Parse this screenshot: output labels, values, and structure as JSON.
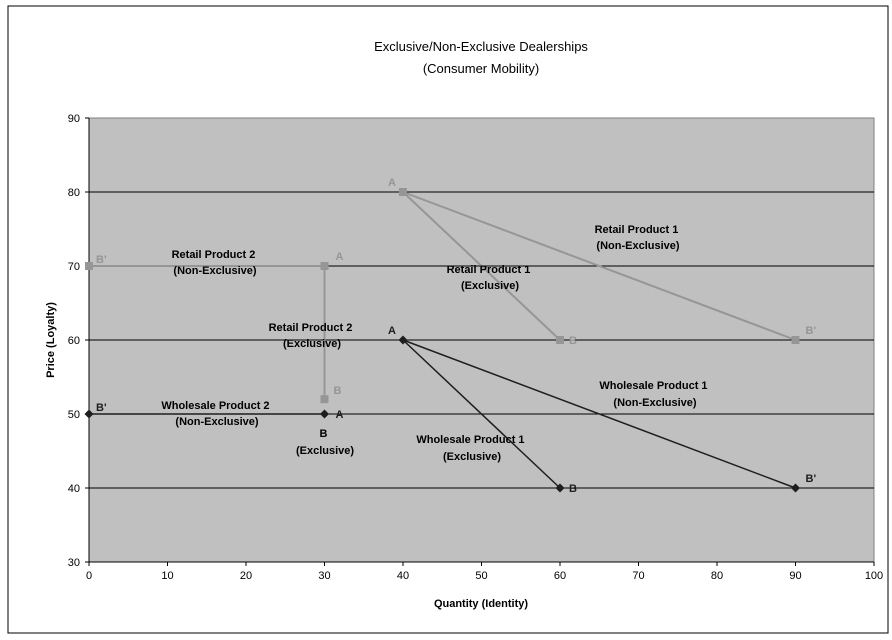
{
  "chart_data": {
    "type": "line",
    "title_lines": [
      "Exclusive/Non-Exclusive Dealerships",
      "(Consumer Mobility)"
    ],
    "xlabel": "Quantity (Identity)",
    "ylabel": "Price (Loyalty)",
    "xlim": [
      0,
      100
    ],
    "ylim": [
      30,
      90
    ],
    "xticks": [
      0,
      10,
      20,
      30,
      40,
      50,
      60,
      70,
      80,
      90,
      100
    ],
    "yticks": [
      30,
      40,
      50,
      60,
      70,
      80,
      90
    ],
    "grid": "horizontal",
    "colors": {
      "retail": "#969696",
      "wholesale": "#1e1e1e",
      "plot_bg": "#c0c0c0"
    },
    "series": [
      {
        "id": "retail-1-exclusive",
        "group": "retail",
        "marker": "square",
        "points": [
          {
            "x": 40,
            "y": 80,
            "label": "A"
          },
          {
            "x": 60,
            "y": 60,
            "label": "B"
          }
        ]
      },
      {
        "id": "retail-1-non-exclusive",
        "group": "retail",
        "marker": "square",
        "points": [
          {
            "x": 40,
            "y": 80,
            "label": ""
          },
          {
            "x": 90,
            "y": 60,
            "label": "B'"
          }
        ]
      },
      {
        "id": "retail-2-exclusive",
        "group": "retail",
        "marker": "square",
        "points": [
          {
            "x": 30,
            "y": 70,
            "label": "A"
          },
          {
            "x": 30,
            "y": 52,
            "label": "B"
          }
        ]
      },
      {
        "id": "retail-2-non-exclusive",
        "group": "retail",
        "marker": "square",
        "points": [
          {
            "x": 0,
            "y": 70,
            "label": "B'"
          },
          {
            "x": 30,
            "y": 70,
            "label": ""
          }
        ]
      },
      {
        "id": "wholesale-1-exclusive",
        "group": "wholesale",
        "marker": "diamond",
        "points": [
          {
            "x": 40,
            "y": 60,
            "label": "A"
          },
          {
            "x": 60,
            "y": 40,
            "label": "B"
          }
        ]
      },
      {
        "id": "wholesale-1-non-exclusive",
        "group": "wholesale",
        "marker": "diamond",
        "points": [
          {
            "x": 40,
            "y": 60,
            "label": ""
          },
          {
            "x": 90,
            "y": 40,
            "label": "B'"
          }
        ]
      },
      {
        "id": "wholesale-2-exclusive",
        "group": "wholesale",
        "marker": "diamond",
        "points": [
          {
            "x": 30,
            "y": 50,
            "label": "A"
          }
        ]
      },
      {
        "id": "wholesale-2-non-exclusive",
        "group": "wholesale",
        "marker": "diamond",
        "points": [
          {
            "x": 0,
            "y": 50,
            "label": "B'"
          },
          {
            "x": 30,
            "y": 50,
            "label": ""
          }
        ]
      }
    ],
    "annotations": [
      {
        "id": "retail-product-2-non-exclusive",
        "lines": [
          "Retail  Product 2",
          "(Non-Exclusive)"
        ]
      },
      {
        "id": "retail-product-1-exclusive",
        "lines": [
          "Retail Product 1",
          "(Exclusive)"
        ]
      },
      {
        "id": "retail-product-1-non-exclusive",
        "lines": [
          "Retail Product 1",
          "(Non-Exclusive)"
        ]
      },
      {
        "id": "retail-product-2-exclusive",
        "lines": [
          "Retail Product 2",
          "(Exclusive)"
        ]
      },
      {
        "id": "wholesale-product-1-non-exclusive",
        "lines": [
          "Wholesale Product 1",
          "(Non-Exclusive)"
        ]
      },
      {
        "id": "wholesale-product-2-non-exclusive",
        "lines": [
          "Wholesale Product 2",
          "(Non-Exclusive)"
        ]
      },
      {
        "id": "wholesale-product-2-exclusive",
        "lines": [
          "B",
          "(Exclusive)"
        ]
      },
      {
        "id": "wholesale-product-1-exclusive",
        "lines": [
          "Wholesale Product 1",
          "(Exclusive)"
        ]
      }
    ]
  }
}
